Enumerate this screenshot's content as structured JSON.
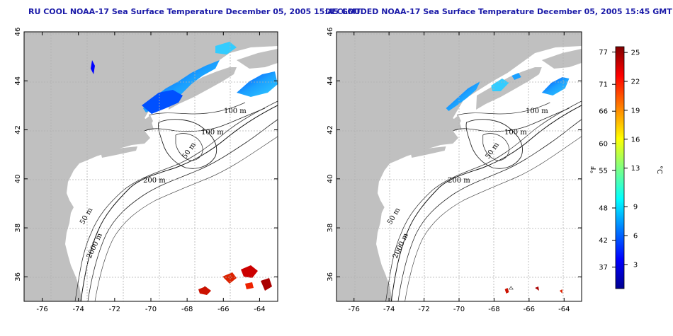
{
  "panels": [
    {
      "title": "RU COOL NOAA-17 Sea Surface Temperature December 05, 2005 15:45 GMT",
      "contour_labels": [
        "100 m",
        "100 m",
        "50 m",
        "200 m",
        "50 m",
        "2000 m"
      ]
    },
    {
      "title": "DECLOUDED NOAA-17 Sea Surface Temperature December 05, 2005 15:45 GMT",
      "contour_labels": [
        "100 m",
        "100 m",
        "50 m",
        "200 m",
        "50 m",
        "2000 m"
      ]
    }
  ],
  "map": {
    "lon_ticks": [
      "-76",
      "-74",
      "-72",
      "-70",
      "-68",
      "-66",
      "-64"
    ],
    "lat_ticks": [
      "46",
      "44",
      "42",
      "40",
      "38",
      "36"
    ],
    "lon_range": [
      -77,
      -63
    ],
    "lat_range": [
      35,
      46
    ],
    "land_color": "#c0c0c0",
    "grid": "dotted"
  },
  "colorbar": {
    "fahrenheit_label": "°F",
    "celsius_label": "°C",
    "fahrenheit_ticks": [
      "77",
      "71",
      "66",
      "60",
      "55",
      "48",
      "42",
      "37"
    ],
    "celsius_ticks": [
      "25",
      "22",
      "19",
      "16",
      "13",
      "9",
      "6",
      "3"
    ],
    "colors": [
      "#00008f",
      "#0000ff",
      "#0080ff",
      "#00ffff",
      "#80ff80",
      "#ffff00",
      "#ff8000",
      "#ff0000",
      "#800000"
    ]
  }
}
